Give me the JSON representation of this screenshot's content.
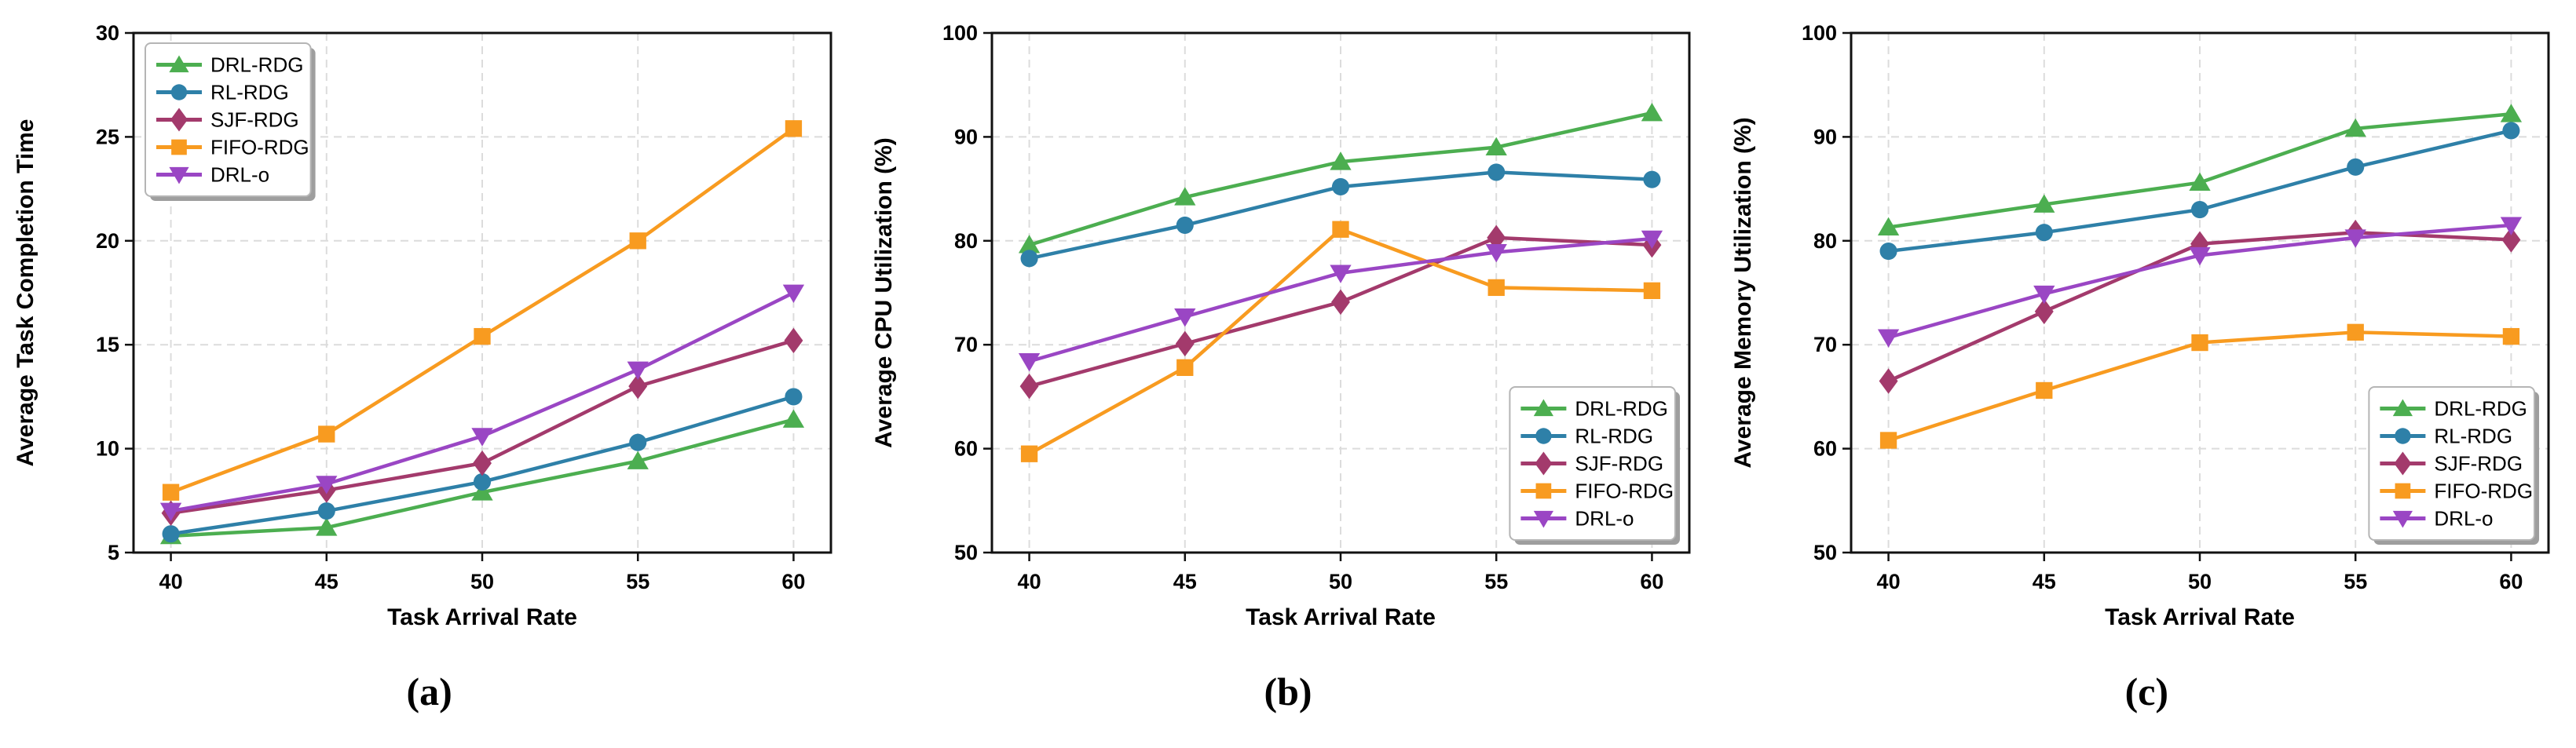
{
  "figure": {
    "background": "#ffffff",
    "grid_color": "#dcdcdc",
    "spine_color": "#111111",
    "legend_border_color": "#b5b5b5",
    "legend_shadow_color": "#9e9e9e"
  },
  "chart_data": [
    {
      "id": "a",
      "caption": "(a)",
      "type": "line",
      "x": [
        40,
        45,
        50,
        55,
        60
      ],
      "x_ticks": [
        "40",
        "45",
        "50",
        "55",
        "60"
      ],
      "xlabel": "Task Arrival Rate",
      "ylabel": "Average Task Completion Time",
      "ylim": [
        5,
        30
      ],
      "yticks": [
        5,
        10,
        15,
        20,
        25,
        30
      ],
      "ytick_labels": [
        "5",
        "10",
        "15",
        "20",
        "25",
        "30"
      ],
      "grid": true,
      "legend_position": "upper-left",
      "series": [
        {
          "name": "DRL-RDG",
          "color": "#4cae50",
          "marker": "triangle-up",
          "values": [
            5.8,
            6.2,
            7.9,
            9.4,
            11.4
          ]
        },
        {
          "name": "RL-RDG",
          "color": "#2e80a8",
          "marker": "circle",
          "values": [
            5.9,
            7.0,
            8.4,
            10.3,
            12.5
          ]
        },
        {
          "name": "SJF-RDG",
          "color": "#a33a6c",
          "marker": "diamond",
          "values": [
            6.9,
            8.0,
            9.3,
            13.0,
            15.2
          ]
        },
        {
          "name": "FIFO-RDG",
          "color": "#f89b20",
          "marker": "square",
          "values": [
            7.9,
            10.7,
            15.4,
            20.0,
            25.4
          ]
        },
        {
          "name": "DRL-o",
          "color": "#9a46c4",
          "marker": "triangle-down",
          "values": [
            7.0,
            8.3,
            10.6,
            13.8,
            17.5
          ]
        }
      ]
    },
    {
      "id": "b",
      "caption": "(b)",
      "type": "line",
      "x": [
        40,
        45,
        50,
        55,
        60
      ],
      "x_ticks": [
        "40",
        "45",
        "50",
        "55",
        "60"
      ],
      "xlabel": "Task Arrival Rate",
      "ylabel": "Average CPU Utilization (%)",
      "ylim": [
        50,
        100
      ],
      "yticks": [
        50,
        60,
        70,
        80,
        90,
        100
      ],
      "ytick_labels": [
        "50",
        "60",
        "70",
        "80",
        "90",
        "100"
      ],
      "grid": true,
      "legend_position": "lower-right",
      "series": [
        {
          "name": "DRL-RDG",
          "color": "#4cae50",
          "marker": "triangle-up",
          "values": [
            79.6,
            84.2,
            87.6,
            89.0,
            92.3
          ]
        },
        {
          "name": "RL-RDG",
          "color": "#2e80a8",
          "marker": "circle",
          "values": [
            78.3,
            81.5,
            85.2,
            86.6,
            85.9
          ]
        },
        {
          "name": "SJF-RDG",
          "color": "#a33a6c",
          "marker": "diamond",
          "values": [
            66.0,
            70.1,
            74.1,
            80.3,
            79.6
          ]
        },
        {
          "name": "FIFO-RDG",
          "color": "#f89b20",
          "marker": "square",
          "values": [
            59.5,
            67.8,
            81.1,
            75.5,
            75.2
          ]
        },
        {
          "name": "DRL-o",
          "color": "#9a46c4",
          "marker": "triangle-down",
          "values": [
            68.4,
            72.7,
            76.9,
            78.9,
            80.2
          ]
        }
      ]
    },
    {
      "id": "c",
      "caption": "(c)",
      "type": "line",
      "x": [
        40,
        45,
        50,
        55,
        60
      ],
      "x_ticks": [
        "40",
        "45",
        "50",
        "55",
        "60"
      ],
      "xlabel": "Task Arrival Rate",
      "ylabel": "Average Memory Utilization (%)",
      "ylim": [
        50,
        100
      ],
      "yticks": [
        50,
        60,
        70,
        80,
        90,
        100
      ],
      "ytick_labels": [
        "50",
        "60",
        "70",
        "80",
        "90",
        "100"
      ],
      "grid": true,
      "legend_position": "lower-right",
      "series": [
        {
          "name": "DRL-RDG",
          "color": "#4cae50",
          "marker": "triangle-up",
          "values": [
            81.3,
            83.5,
            85.6,
            90.8,
            92.2
          ]
        },
        {
          "name": "RL-RDG",
          "color": "#2e80a8",
          "marker": "circle",
          "values": [
            79.0,
            80.8,
            83.0,
            87.1,
            90.6
          ]
        },
        {
          "name": "SJF-RDG",
          "color": "#a33a6c",
          "marker": "diamond",
          "values": [
            66.5,
            73.2,
            79.7,
            80.8,
            80.1
          ]
        },
        {
          "name": "FIFO-RDG",
          "color": "#f89b20",
          "marker": "square",
          "values": [
            60.8,
            65.6,
            70.2,
            71.2,
            70.8
          ]
        },
        {
          "name": "DRL-o",
          "color": "#9a46c4",
          "marker": "triangle-down",
          "values": [
            70.7,
            74.9,
            78.6,
            80.3,
            81.5
          ]
        }
      ]
    }
  ]
}
